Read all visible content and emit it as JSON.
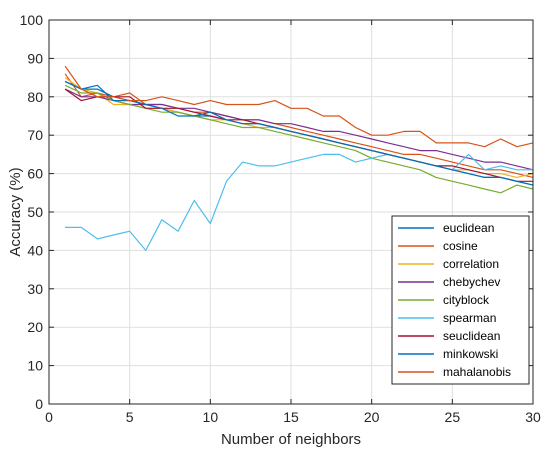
{
  "chart_data": {
    "type": "line",
    "title": "",
    "xlabel": "Number of neighbors",
    "ylabel": "Accuracy (%)",
    "xlim": [
      0,
      30
    ],
    "ylim": [
      0,
      100
    ],
    "xticks": [
      "0",
      "5",
      "10",
      "15",
      "20",
      "25",
      "30"
    ],
    "yticks": [
      "0",
      "10",
      "20",
      "30",
      "40",
      "50",
      "60",
      "70",
      "80",
      "90",
      "100"
    ],
    "grid": true,
    "legend_position": "bottom-right",
    "x": [
      1,
      2,
      3,
      4,
      5,
      6,
      7,
      8,
      9,
      10,
      11,
      12,
      13,
      14,
      15,
      16,
      17,
      18,
      19,
      20,
      21,
      22,
      23,
      24,
      25,
      26,
      27,
      28,
      29,
      30
    ],
    "series": [
      {
        "name": "euclidean",
        "color": "#0072BD",
        "values": [
          84,
          82,
          82,
          80,
          79,
          78,
          77,
          76,
          75,
          75,
          74,
          73,
          73,
          72,
          71,
          70,
          69,
          68,
          67,
          66,
          65,
          64,
          63,
          62,
          61,
          60,
          59,
          59,
          58,
          57
        ]
      },
      {
        "name": "cosine",
        "color": "#D95319",
        "values": [
          86,
          80,
          81,
          80,
          81,
          78,
          78,
          77,
          76,
          76,
          75,
          74,
          74,
          73,
          72,
          71,
          70,
          69,
          68,
          67,
          66,
          65,
          65,
          64,
          63,
          62,
          61,
          61,
          60,
          59
        ]
      },
      {
        "name": "correlation",
        "color": "#EDB120",
        "values": [
          85,
          82,
          81,
          78,
          78,
          77,
          77,
          76,
          75,
          74,
          74,
          73,
          72,
          72,
          71,
          70,
          69,
          68,
          67,
          66,
          65,
          64,
          63,
          62,
          61,
          61,
          60,
          60,
          59,
          60
        ]
      },
      {
        "name": "chebychev",
        "color": "#7E2F8E",
        "values": [
          82,
          80,
          80,
          79,
          78,
          78,
          78,
          77,
          77,
          76,
          75,
          74,
          74,
          73,
          73,
          72,
          71,
          71,
          70,
          69,
          68,
          67,
          66,
          66,
          65,
          64,
          63,
          63,
          62,
          61
        ]
      },
      {
        "name": "cityblock",
        "color": "#77AC30",
        "values": [
          83,
          81,
          81,
          79,
          78,
          77,
          76,
          76,
          75,
          74,
          73,
          72,
          72,
          71,
          70,
          69,
          68,
          67,
          66,
          64,
          63,
          62,
          61,
          59,
          58,
          57,
          56,
          55,
          57,
          56
        ]
      },
      {
        "name": "spearman",
        "color": "#4DBEEE",
        "values": [
          46,
          46,
          43,
          44,
          45,
          40,
          48,
          45,
          53,
          47,
          58,
          63,
          62,
          62,
          63,
          64,
          65,
          65,
          63,
          64,
          65,
          64,
          63,
          62,
          61,
          65,
          61,
          62,
          61,
          61
        ]
      },
      {
        "name": "seuclidean",
        "color": "#A2142F",
        "values": [
          82,
          79,
          80,
          80,
          80,
          77,
          77,
          77,
          76,
          75,
          74,
          74,
          73,
          72,
          71,
          70,
          69,
          68,
          67,
          66,
          65,
          64,
          63,
          62,
          62,
          61,
          60,
          59,
          58,
          58
        ]
      },
      {
        "name": "minkowski",
        "color": "#0072BD",
        "values": [
          84,
          82,
          83,
          79,
          79,
          78,
          77,
          75,
          75,
          76,
          74,
          73,
          73,
          72,
          71,
          70,
          69,
          68,
          67,
          66,
          65,
          64,
          63,
          62,
          61,
          60,
          59,
          59,
          58,
          57
        ]
      },
      {
        "name": "mahalanobis",
        "color": "#D95319",
        "values": [
          88,
          82,
          80,
          80,
          79,
          79,
          80,
          79,
          78,
          79,
          78,
          78,
          78,
          79,
          77,
          77,
          75,
          75,
          72,
          70,
          70,
          71,
          71,
          68,
          68,
          68,
          67,
          69,
          67,
          68
        ]
      }
    ]
  }
}
